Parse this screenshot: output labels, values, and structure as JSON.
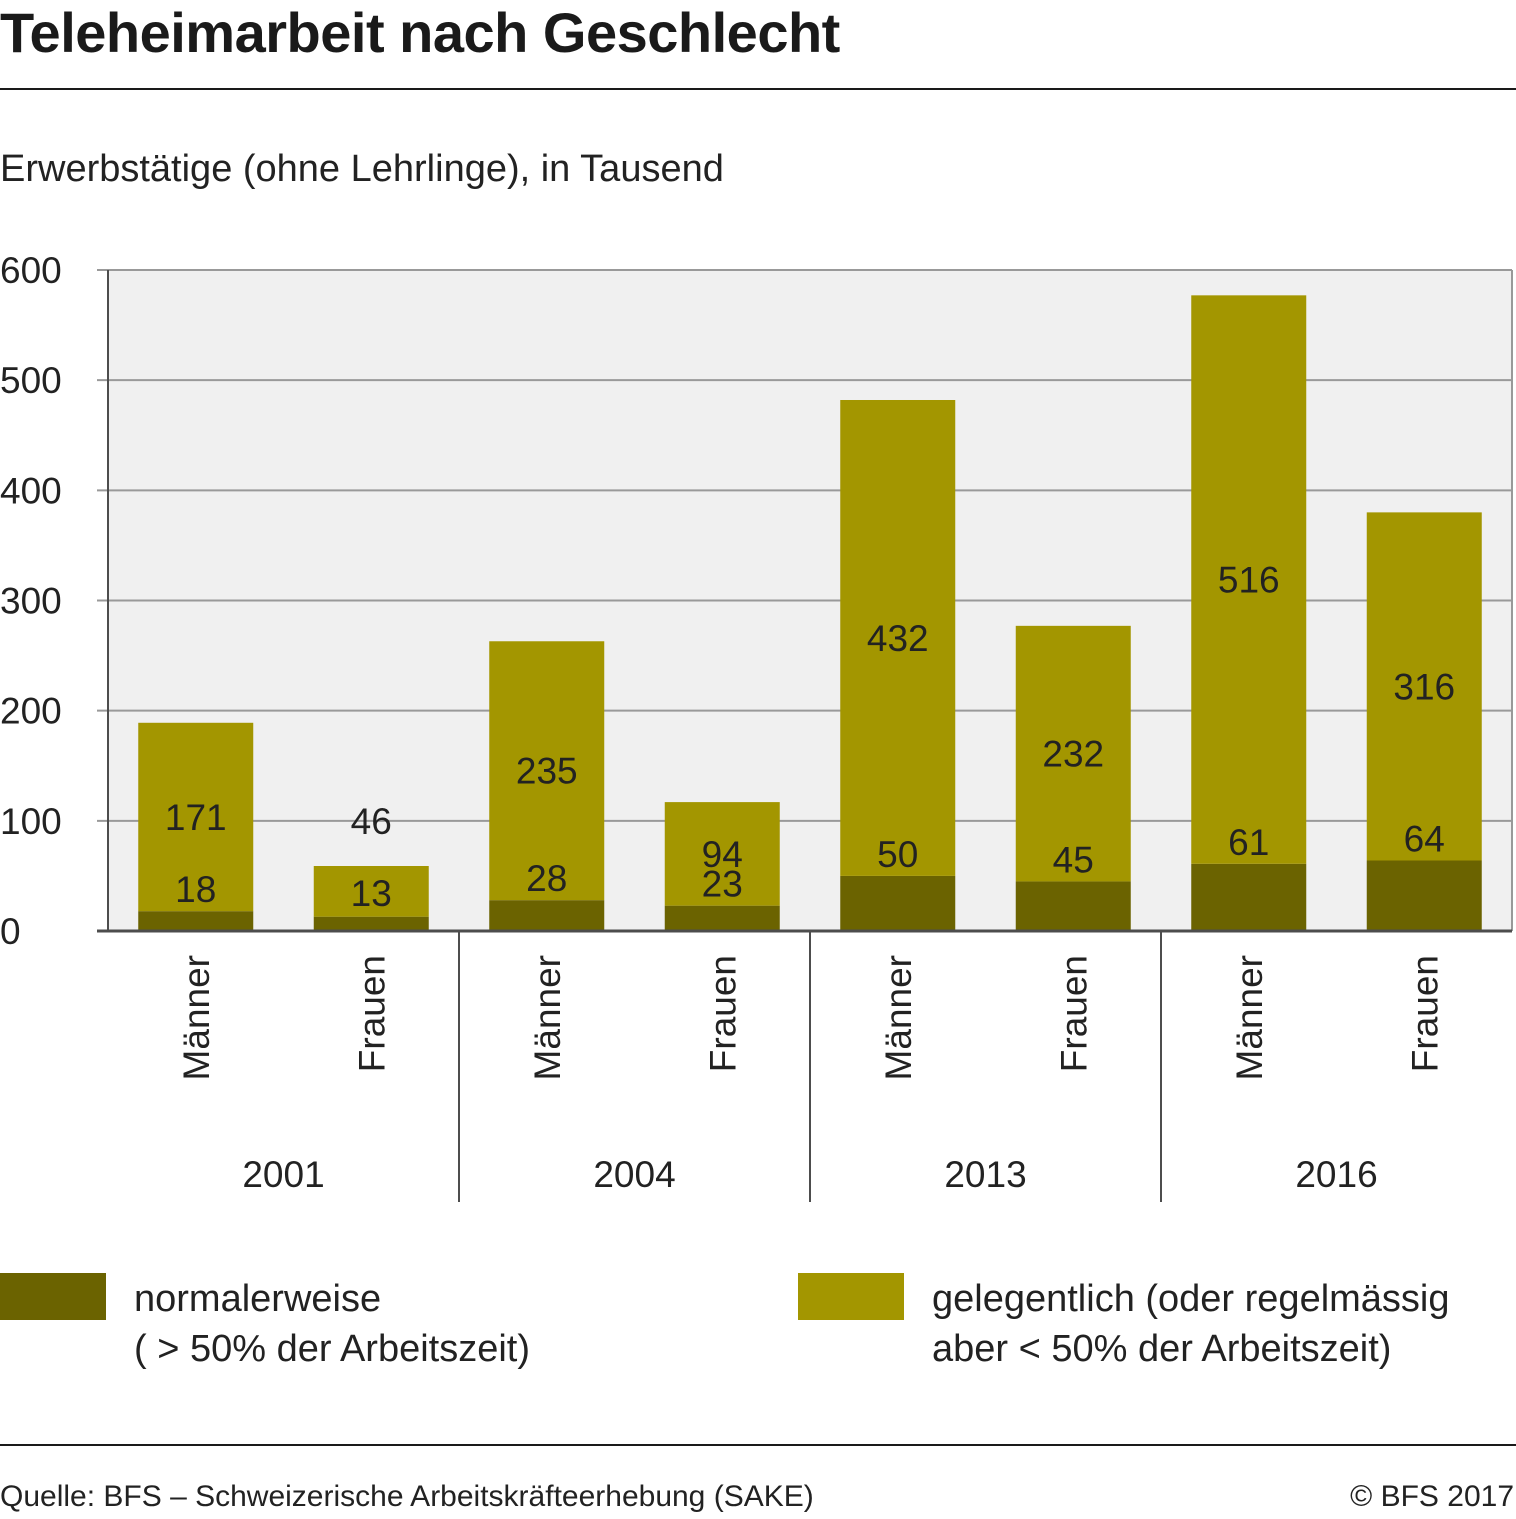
{
  "title": "Teleheimarbeit nach Geschlecht",
  "subtitle": "Erwerbstätige (ohne Lehrlinge), in Tausend",
  "colors": {
    "normal": "#6b6300",
    "occasional": "#a39600",
    "plot_bg": "#f0f0f0",
    "grid": "#999999",
    "axis": "#4d4d4d"
  },
  "chart_data": {
    "type": "bar",
    "stacked": true,
    "categories": [
      "Männer",
      "Frauen",
      "Männer",
      "Frauen",
      "Männer",
      "Frauen",
      "Männer",
      "Frauen"
    ],
    "groups": [
      {
        "label": "2001",
        "categories": [
          0,
          1
        ]
      },
      {
        "label": "2004",
        "categories": [
          2,
          3
        ]
      },
      {
        "label": "2013",
        "categories": [
          4,
          5
        ]
      },
      {
        "label": "2016",
        "categories": [
          6,
          7
        ]
      }
    ],
    "series": [
      {
        "name": "normalerweise ( > 50% der Arbeitszeit)",
        "values": [
          18,
          13,
          28,
          23,
          50,
          45,
          61,
          64
        ]
      },
      {
        "name": "gelegentlich (oder regelmässig aber < 50% der Arbeitszeit)",
        "values": [
          171,
          46,
          235,
          94,
          432,
          232,
          516,
          316
        ]
      }
    ],
    "ylim": [
      0,
      600
    ],
    "yticks": [
      0,
      100,
      200,
      300,
      400,
      500,
      600
    ],
    "grid": true,
    "legend_position": "bottom"
  },
  "legend": {
    "normal_line1": "normalerweise",
    "normal_line2": "( > 50% der Arbeitszeit)",
    "occasional_line1": "gelegentlich (oder regelmässig",
    "occasional_line2": "aber < 50% der Arbeitszeit)"
  },
  "footer": {
    "source": "Quelle: BFS – Schweizerische Arbeitskräfteerhebung (SAKE)",
    "copyright": "© BFS 2017"
  }
}
